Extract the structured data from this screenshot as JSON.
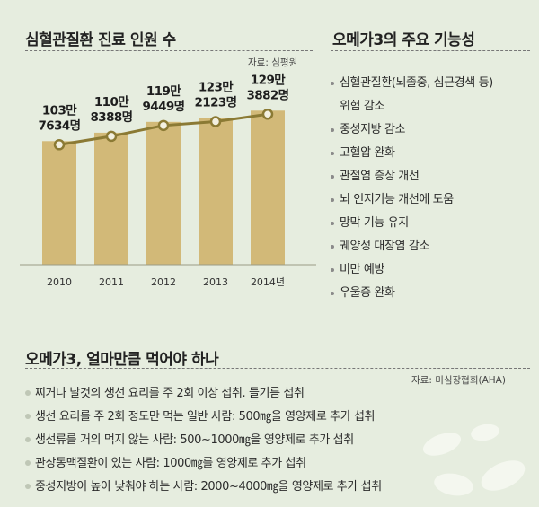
{
  "left_section": {
    "title": "심혈관질환 진료 인원 수",
    "source": "자료: 심평원"
  },
  "right_section": {
    "title": "오메가3의 주요 기능성",
    "items": [
      "심혈관질환(뇌졸중, 심근경색 등)",
      "위험 감소",
      "중성지방 감소",
      "고혈압 완화",
      "관절염 증상 개선",
      "뇌 인지기능 개선에 도움",
      "망막 기능 유지",
      "궤양성 대장염 감소",
      "비만 예방",
      "우울증 완화"
    ]
  },
  "bottom_section": {
    "title": "오메가3, 얼마만큼 먹어야 하나",
    "source": "자료: 미심장협회(AHA)",
    "items": [
      "찌거나 날것의 생선 요리를 주 2회 이상 섭취. 들기름 섭취",
      "생선 요리를 주 2회 정도만 먹는 일반 사람: 500㎎을 영양제로 추가 섭취",
      "생선류를 거의 먹지 않는 사람: 500~1000㎎을 영양제로 추가 섭취",
      "관상동맥질환이 있는 사람: 1000㎎를 영양제로 추가 섭취",
      "중성지방이 높아 낮춰야 하는 사람: 2000~4000㎎을 영양제로 추가 섭취"
    ]
  },
  "chart_data": {
    "type": "bar",
    "title": "심혈관질환 진료 인원 수",
    "categories": [
      "2010",
      "2011",
      "2012",
      "2013",
      "2014년"
    ],
    "values": [
      1037634,
      1108388,
      1199449,
      1232123,
      1293882
    ],
    "labels": [
      [
        "103만",
        "7634명"
      ],
      [
        "110만",
        "8388명"
      ],
      [
        "119만",
        "9449명"
      ],
      [
        "123만",
        "2123명"
      ],
      [
        "129만",
        "3882명"
      ]
    ],
    "has_trend_line": true,
    "ylim": [
      0,
      1620000
    ],
    "colors": {
      "bar": "#d2b978",
      "line": "#8b7a34"
    }
  }
}
